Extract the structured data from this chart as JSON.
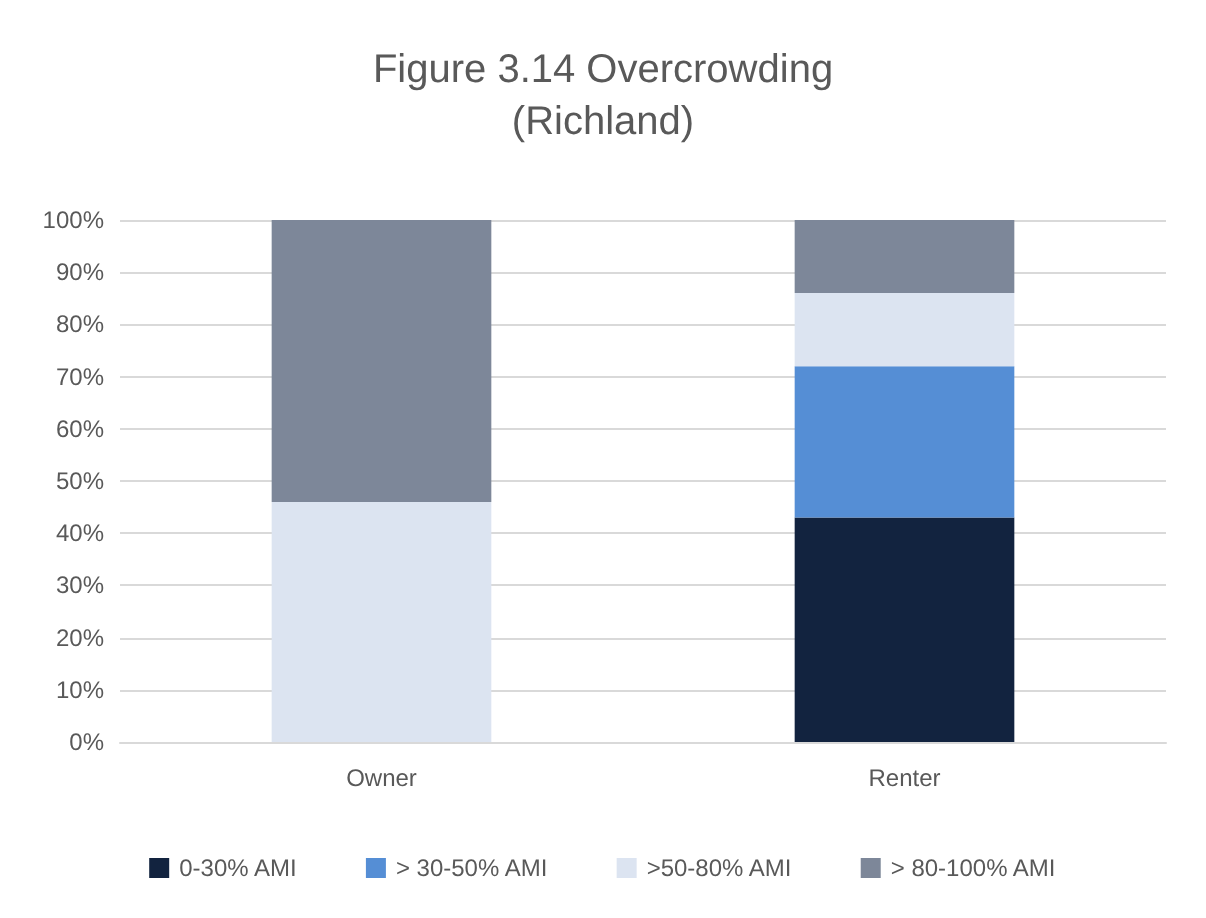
{
  "chart_data": {
    "type": "bar",
    "title": "Figure 3.14 Overcrowding",
    "subtitle": "(Richland)",
    "categories": [
      "Owner",
      "Renter"
    ],
    "stacked": true,
    "series": [
      {
        "name": "0-30% AMI",
        "color": "#12233f",
        "values": [
          0,
          43
        ]
      },
      {
        "name": "> 30-50% AMI",
        "color": "#558ed5",
        "values": [
          0,
          29
        ]
      },
      {
        "name": ">50-80% AMI",
        "color": "#dce4f1",
        "values": [
          46,
          14
        ]
      },
      {
        "name": "> 80-100% AMI",
        "color": "#7d8799",
        "values": [
          54,
          14
        ]
      }
    ],
    "ylim": [
      0,
      100
    ],
    "yticks": [
      {
        "value": 0,
        "label": "0%"
      },
      {
        "value": 10,
        "label": "10%"
      },
      {
        "value": 20,
        "label": "20%"
      },
      {
        "value": 30,
        "label": "30%"
      },
      {
        "value": 40,
        "label": "40%"
      },
      {
        "value": 50,
        "label": "50%"
      },
      {
        "value": 60,
        "label": "60%"
      },
      {
        "value": 70,
        "label": "70%"
      },
      {
        "value": 80,
        "label": "80%"
      },
      {
        "value": 90,
        "label": "90%"
      },
      {
        "value": 100,
        "label": "100%"
      }
    ],
    "grid": "y",
    "legend": "bottom"
  }
}
